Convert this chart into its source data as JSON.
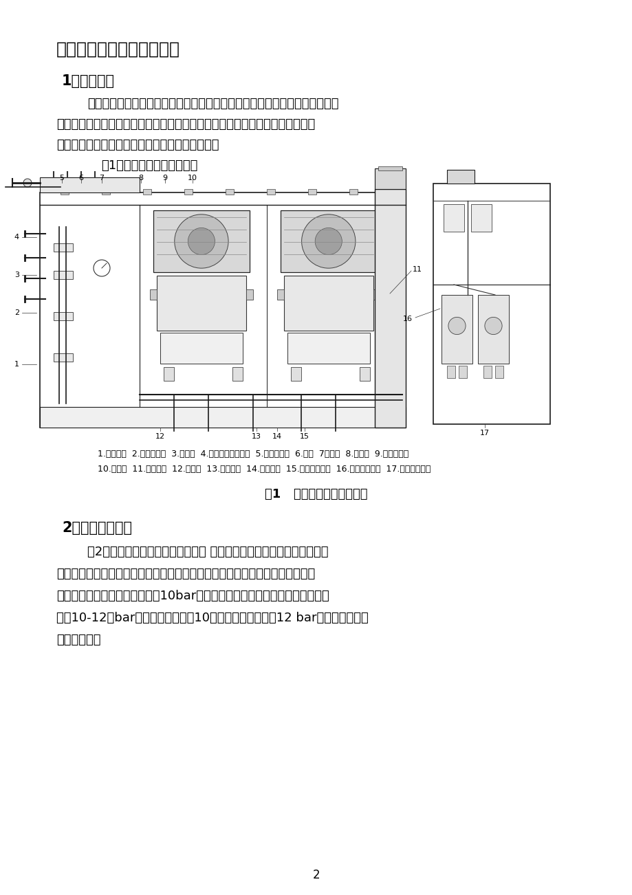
{
  "page_bg": "#ffffff",
  "title_section": "二、系统的组成及工作原理",
  "section1_title": "1、系统组成",
  "section1_para1": "泵组式细水雾灭火系统一般由高压主泵、备用泵、稳压泵、电磁阀、过滤器、",
  "section1_para2": "泵控制柜、水笱组件、供水管网、区域阀笱组件、高压细水雾噴头（包括开式、",
  "section1_para3": "闭式）及火灾报警控制系统及补水泵等部件组成。",
  "section1_para4": "图1是高压细水雾泵组组成图",
  "legend_line1": "1.主控制阀  2.安全泄压阀  3.排污阀  4.液位计及液动开关  5.进水电磁阀  6.水笱  7测试鄀  8.压力表  9.压力传感器",
  "legend_line2": "10.高压泵  11.泵控制柜  12.稳压泵  13.泵进水管  14.泵出水管  15.高压泵单向鄀  16.稳压泵单向鄀  17.稳压泵检修鄀",
  "fig_caption": "图1   高压细水雾泵组组成图",
  "section2_title": "2、系统工作原理",
  "section2_para1": "图2是细水雾灭火系统的工作原理图 在准工作状况下，细水雾系统从泵组",
  "section2_para2": "出口至区域阀前的管网内（闭式是从泵组出口至噴头的管网）维持一定压力，当",
  "section2_para3": "压力低于稳压泵的设定启动压力10bar时，稳压泵启动，使系统管网维持稳定压",
  "section2_para4": "力（10-12）bar，稳压泵运行超过10秒钟后压力仍达不到12 bar时，主泵启动，",
  "section2_para5": "稳压泵停止。",
  "page_number": "2",
  "text_color": "#000000"
}
